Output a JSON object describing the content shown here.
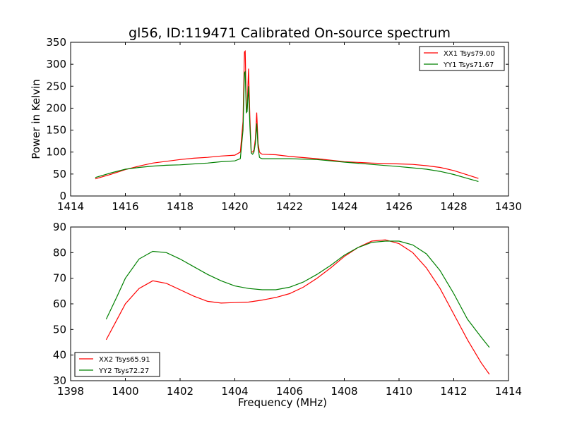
{
  "figure": {
    "title": "gl56, ID:119471 Calibrated On-source spectrum"
  },
  "chart_data": [
    {
      "type": "line",
      "title": "gl56, ID:119471 Calibrated On-source spectrum",
      "xlabel": "",
      "ylabel": "Power in Kelvin",
      "xlim": [
        1414,
        1430
      ],
      "ylim": [
        0,
        350
      ],
      "xticks": [
        "1414",
        "1416",
        "1418",
        "1420",
        "1422",
        "1424",
        "1426",
        "1428",
        "1430"
      ],
      "yticks": [
        "0",
        "50",
        "100",
        "150",
        "200",
        "250",
        "300",
        "350"
      ],
      "grid": false,
      "legend_position": "top-right",
      "series": [
        {
          "name": "XX1 Tsys79.00",
          "color": "#ff0000",
          "x": [
            1414.9,
            1415.5,
            1416.0,
            1416.5,
            1417.0,
            1417.5,
            1418.0,
            1418.5,
            1419.0,
            1419.5,
            1420.0,
            1420.2,
            1420.3,
            1420.35,
            1420.38,
            1420.42,
            1420.45,
            1420.5,
            1420.55,
            1420.6,
            1420.65,
            1420.7,
            1420.75,
            1420.8,
            1420.85,
            1420.9,
            1420.95,
            1421.0,
            1421.5,
            1422.0,
            1423.0,
            1424.0,
            1425.0,
            1426.0,
            1426.5,
            1427.0,
            1427.5,
            1428.0,
            1428.5,
            1428.9
          ],
          "y": [
            39,
            50,
            60,
            68,
            75,
            79,
            83,
            86,
            88,
            91,
            93,
            100,
            170,
            328,
            330,
            200,
            195,
            290,
            180,
            100,
            100,
            105,
            130,
            190,
            120,
            100,
            97,
            95,
            94,
            90,
            85,
            78,
            75,
            73,
            72,
            69,
            65,
            58,
            48,
            40
          ]
        },
        {
          "name": "YY1 Tsys71.67",
          "color": "#008000",
          "x": [
            1414.9,
            1415.5,
            1416.0,
            1416.5,
            1417.0,
            1417.5,
            1418.0,
            1418.5,
            1419.0,
            1419.5,
            1420.0,
            1420.2,
            1420.3,
            1420.35,
            1420.38,
            1420.42,
            1420.45,
            1420.5,
            1420.55,
            1420.6,
            1420.65,
            1420.7,
            1420.75,
            1420.8,
            1420.85,
            1420.9,
            1420.95,
            1421.0,
            1421.5,
            1422.0,
            1423.0,
            1424.0,
            1425.0,
            1426.0,
            1426.5,
            1427.0,
            1427.5,
            1428.0,
            1428.5,
            1428.9
          ],
          "y": [
            42,
            53,
            61,
            65,
            68,
            70,
            71,
            73,
            75,
            78,
            80,
            85,
            150,
            280,
            283,
            190,
            192,
            250,
            160,
            98,
            95,
            100,
            120,
            165,
            110,
            88,
            86,
            85,
            85,
            85,
            83,
            77,
            72,
            67,
            64,
            61,
            56,
            49,
            40,
            33
          ]
        }
      ]
    },
    {
      "type": "line",
      "title": "",
      "xlabel": "Frequency (MHz)",
      "ylabel": "",
      "xlim": [
        1398,
        1414
      ],
      "ylim": [
        30,
        90
      ],
      "xticks": [
        "1398",
        "1400",
        "1402",
        "1404",
        "1406",
        "1408",
        "1410",
        "1412",
        "1414"
      ],
      "yticks": [
        "30",
        "40",
        "50",
        "60",
        "70",
        "80",
        "90"
      ],
      "grid": false,
      "legend_position": "bottom-left",
      "series": [
        {
          "name": "XX2 Tsys65.91",
          "color": "#ff0000",
          "x": [
            1399.3,
            1399.7,
            1400.0,
            1400.5,
            1401.0,
            1401.5,
            1402.0,
            1402.5,
            1403.0,
            1403.5,
            1404.0,
            1404.5,
            1405.0,
            1405.5,
            1406.0,
            1406.5,
            1407.0,
            1407.5,
            1408.0,
            1408.5,
            1409.0,
            1409.5,
            1410.0,
            1410.5,
            1411.0,
            1411.5,
            1412.0,
            1412.5,
            1413.0,
            1413.3
          ],
          "y": [
            46,
            54,
            60,
            66,
            69,
            68,
            65.5,
            63,
            61,
            60.3,
            60.5,
            60.7,
            61.5,
            62.5,
            64,
            66.5,
            70,
            74,
            78.5,
            82,
            84.5,
            85,
            83.5,
            80,
            74,
            66,
            56,
            46,
            37,
            32.5
          ]
        },
        {
          "name": "YY2 Tsys72.27",
          "color": "#008000",
          "x": [
            1399.3,
            1399.7,
            1400.0,
            1400.5,
            1401.0,
            1401.5,
            1402.0,
            1402.5,
            1403.0,
            1403.5,
            1404.0,
            1404.5,
            1405.0,
            1405.5,
            1406.0,
            1406.5,
            1407.0,
            1407.5,
            1408.0,
            1408.5,
            1409.0,
            1409.5,
            1410.0,
            1410.5,
            1411.0,
            1411.5,
            1412.0,
            1412.5,
            1413.0,
            1413.3
          ],
          "y": [
            54,
            63,
            70,
            77.5,
            80.5,
            80,
            77.5,
            74.5,
            71.5,
            69,
            67,
            66,
            65.5,
            65.5,
            66.5,
            68.5,
            71.5,
            75,
            79,
            82,
            84,
            84.5,
            84.5,
            83,
            79.5,
            73,
            64,
            54,
            47,
            43
          ]
        }
      ]
    }
  ]
}
